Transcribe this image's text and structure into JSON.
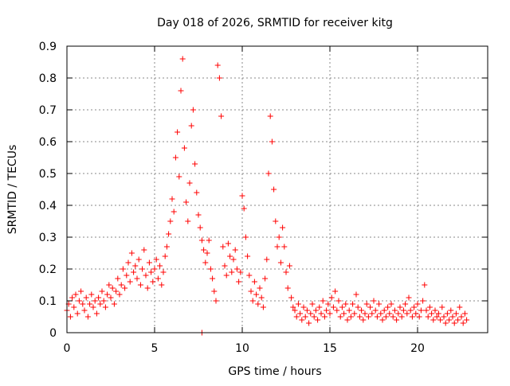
{
  "chart_data": {
    "type": "scatter",
    "title": "Day 018 of 2026, SRMTID for receiver kitg",
    "xlabel": "GPS time / hours",
    "ylabel": "SRMTID / TECUs",
    "xlim": [
      0,
      24
    ],
    "ylim": [
      0,
      0.9
    ],
    "xticks": [
      0,
      5,
      10,
      15,
      20
    ],
    "xtick_labels": [
      "0",
      "5",
      "10",
      "15",
      "20"
    ],
    "yticks": [
      0,
      0.1,
      0.2,
      0.3,
      0.4,
      0.5,
      0.6,
      0.7,
      0.8,
      0.9
    ],
    "ytick_labels": [
      "0",
      "0.1",
      "0.2",
      "0.3",
      "0.4",
      "0.5",
      "0.6",
      "0.7",
      "0.8",
      "0.9"
    ],
    "grid": true,
    "marker": "+",
    "color": "#ff0000",
    "series": [
      {
        "name": "SRMTID",
        "points": [
          [
            0.0,
            0.07
          ],
          [
            0.1,
            0.09
          ],
          [
            0.2,
            0.05
          ],
          [
            0.3,
            0.11
          ],
          [
            0.4,
            0.08
          ],
          [
            0.5,
            0.12
          ],
          [
            0.6,
            0.06
          ],
          [
            0.7,
            0.1
          ],
          [
            0.8,
            0.13
          ],
          [
            0.9,
            0.09
          ],
          [
            1.0,
            0.07
          ],
          [
            1.1,
            0.11
          ],
          [
            1.2,
            0.05
          ],
          [
            1.3,
            0.09
          ],
          [
            1.4,
            0.12
          ],
          [
            1.5,
            0.08
          ],
          [
            1.6,
            0.1
          ],
          [
            1.7,
            0.06
          ],
          [
            1.8,
            0.11
          ],
          [
            1.9,
            0.09
          ],
          [
            2.0,
            0.13
          ],
          [
            2.1,
            0.1
          ],
          [
            2.2,
            0.08
          ],
          [
            2.3,
            0.12
          ],
          [
            2.4,
            0.15
          ],
          [
            2.5,
            0.11
          ],
          [
            2.6,
            0.14
          ],
          [
            2.7,
            0.09
          ],
          [
            2.8,
            0.13
          ],
          [
            2.9,
            0.17
          ],
          [
            3.0,
            0.12
          ],
          [
            3.1,
            0.15
          ],
          [
            3.2,
            0.2
          ],
          [
            3.3,
            0.14
          ],
          [
            3.4,
            0.18
          ],
          [
            3.5,
            0.22
          ],
          [
            3.6,
            0.16
          ],
          [
            3.7,
            0.25
          ],
          [
            3.8,
            0.19
          ],
          [
            3.9,
            0.21
          ],
          [
            4.0,
            0.17
          ],
          [
            4.1,
            0.23
          ],
          [
            4.2,
            0.15
          ],
          [
            4.3,
            0.2
          ],
          [
            4.4,
            0.26
          ],
          [
            4.5,
            0.18
          ],
          [
            4.6,
            0.14
          ],
          [
            4.7,
            0.22
          ],
          [
            4.8,
            0.19
          ],
          [
            4.9,
            0.16
          ],
          [
            5.0,
            0.2
          ],
          [
            5.1,
            0.23
          ],
          [
            5.2,
            0.17
          ],
          [
            5.3,
            0.21
          ],
          [
            5.4,
            0.15
          ],
          [
            5.5,
            0.19
          ],
          [
            5.6,
            0.24
          ],
          [
            5.7,
            0.27
          ],
          [
            5.8,
            0.31
          ],
          [
            5.9,
            0.35
          ],
          [
            6.0,
            0.42
          ],
          [
            6.1,
            0.38
          ],
          [
            6.2,
            0.55
          ],
          [
            6.3,
            0.63
          ],
          [
            6.4,
            0.49
          ],
          [
            6.5,
            0.76
          ],
          [
            6.6,
            0.86
          ],
          [
            6.7,
            0.58
          ],
          [
            6.8,
            0.41
          ],
          [
            6.9,
            0.35
          ],
          [
            7.0,
            0.47
          ],
          [
            7.1,
            0.65
          ],
          [
            7.2,
            0.7
          ],
          [
            7.3,
            0.53
          ],
          [
            7.4,
            0.44
          ],
          [
            7.5,
            0.37
          ],
          [
            7.6,
            0.33
          ],
          [
            7.7,
            0.29
          ],
          [
            7.8,
            0.26
          ],
          [
            7.9,
            0.22
          ],
          [
            8.0,
            0.25
          ],
          [
            8.1,
            0.29
          ],
          [
            8.2,
            0.2
          ],
          [
            8.3,
            0.17
          ],
          [
            8.4,
            0.13
          ],
          [
            8.5,
            0.1
          ],
          [
            8.6,
            0.84
          ],
          [
            8.7,
            0.8
          ],
          [
            8.8,
            0.68
          ],
          [
            8.9,
            0.27
          ],
          [
            9.0,
            0.21
          ],
          [
            9.1,
            0.18
          ],
          [
            9.2,
            0.28
          ],
          [
            9.3,
            0.24
          ],
          [
            9.4,
            0.19
          ],
          [
            9.5,
            0.23
          ],
          [
            9.6,
            0.26
          ],
          [
            9.7,
            0.2
          ],
          [
            9.8,
            0.16
          ],
          [
            9.9,
            0.19
          ],
          [
            10.0,
            0.43
          ],
          [
            10.1,
            0.39
          ],
          [
            10.2,
            0.3
          ],
          [
            10.3,
            0.24
          ],
          [
            10.4,
            0.18
          ],
          [
            10.5,
            0.13
          ],
          [
            10.6,
            0.1
          ],
          [
            10.7,
            0.16
          ],
          [
            10.8,
            0.12
          ],
          [
            10.9,
            0.09
          ],
          [
            11.0,
            0.14
          ],
          [
            11.1,
            0.11
          ],
          [
            11.2,
            0.08
          ],
          [
            11.3,
            0.17
          ],
          [
            11.4,
            0.23
          ],
          [
            11.5,
            0.5
          ],
          [
            11.6,
            0.68
          ],
          [
            11.7,
            0.6
          ],
          [
            11.8,
            0.45
          ],
          [
            11.9,
            0.35
          ],
          [
            12.0,
            0.27
          ],
          [
            12.1,
            0.3
          ],
          [
            12.2,
            0.22
          ],
          [
            12.3,
            0.33
          ],
          [
            12.4,
            0.27
          ],
          [
            12.5,
            0.19
          ],
          [
            12.6,
            0.14
          ],
          [
            12.7,
            0.21
          ],
          [
            12.8,
            0.11
          ],
          [
            12.9,
            0.08
          ],
          [
            13.0,
            0.07
          ],
          [
            13.1,
            0.05
          ],
          [
            13.2,
            0.09
          ],
          [
            13.3,
            0.06
          ],
          [
            13.4,
            0.04
          ],
          [
            13.5,
            0.08
          ],
          [
            13.6,
            0.05
          ],
          [
            13.7,
            0.07
          ],
          [
            13.8,
            0.03
          ],
          [
            13.9,
            0.06
          ],
          [
            14.0,
            0.09
          ],
          [
            14.1,
            0.05
          ],
          [
            14.2,
            0.07
          ],
          [
            14.3,
            0.04
          ],
          [
            14.4,
            0.08
          ],
          [
            14.5,
            0.06
          ],
          [
            14.6,
            0.1
          ],
          [
            14.7,
            0.05
          ],
          [
            14.8,
            0.07
          ],
          [
            14.9,
            0.09
          ],
          [
            15.0,
            0.06
          ],
          [
            15.1,
            0.11
          ],
          [
            15.2,
            0.08
          ],
          [
            15.3,
            0.13
          ],
          [
            15.4,
            0.07
          ],
          [
            15.5,
            0.1
          ],
          [
            15.6,
            0.05
          ],
          [
            15.7,
            0.08
          ],
          [
            15.8,
            0.06
          ],
          [
            15.9,
            0.09
          ],
          [
            16.0,
            0.04
          ],
          [
            16.1,
            0.07
          ],
          [
            16.2,
            0.05
          ],
          [
            16.3,
            0.09
          ],
          [
            16.4,
            0.06
          ],
          [
            16.5,
            0.12
          ],
          [
            16.6,
            0.08
          ],
          [
            16.7,
            0.05
          ],
          [
            16.8,
            0.07
          ],
          [
            16.9,
            0.04
          ],
          [
            17.0,
            0.06
          ],
          [
            17.1,
            0.09
          ],
          [
            17.2,
            0.05
          ],
          [
            17.3,
            0.08
          ],
          [
            17.4,
            0.06
          ],
          [
            17.5,
            0.1
          ],
          [
            17.6,
            0.07
          ],
          [
            17.7,
            0.05
          ],
          [
            17.8,
            0.09
          ],
          [
            17.9,
            0.06
          ],
          [
            18.0,
            0.04
          ],
          [
            18.1,
            0.07
          ],
          [
            18.2,
            0.05
          ],
          [
            18.3,
            0.08
          ],
          [
            18.4,
            0.06
          ],
          [
            18.5,
            0.09
          ],
          [
            18.6,
            0.05
          ],
          [
            18.7,
            0.07
          ],
          [
            18.8,
            0.04
          ],
          [
            18.9,
            0.06
          ],
          [
            19.0,
            0.08
          ],
          [
            19.1,
            0.05
          ],
          [
            19.2,
            0.07
          ],
          [
            19.3,
            0.09
          ],
          [
            19.4,
            0.06
          ],
          [
            19.5,
            0.11
          ],
          [
            19.6,
            0.07
          ],
          [
            19.7,
            0.05
          ],
          [
            19.8,
            0.08
          ],
          [
            19.9,
            0.06
          ],
          [
            20.0,
            0.09
          ],
          [
            20.1,
            0.05
          ],
          [
            20.2,
            0.07
          ],
          [
            20.3,
            0.1
          ],
          [
            20.4,
            0.15
          ],
          [
            20.5,
            0.07
          ],
          [
            20.6,
            0.05
          ],
          [
            20.7,
            0.08
          ],
          [
            20.8,
            0.06
          ],
          [
            20.9,
            0.04
          ],
          [
            21.0,
            0.07
          ],
          [
            21.1,
            0.05
          ],
          [
            21.2,
            0.06
          ],
          [
            21.3,
            0.04
          ],
          [
            21.4,
            0.08
          ],
          [
            21.5,
            0.05
          ],
          [
            21.6,
            0.03
          ],
          [
            21.7,
            0.06
          ],
          [
            21.8,
            0.04
          ],
          [
            21.9,
            0.07
          ],
          [
            22.0,
            0.05
          ],
          [
            22.1,
            0.03
          ],
          [
            22.2,
            0.06
          ],
          [
            22.3,
            0.04
          ],
          [
            22.4,
            0.08
          ],
          [
            22.5,
            0.05
          ],
          [
            22.6,
            0.03
          ],
          [
            22.7,
            0.06
          ],
          [
            22.8,
            0.04
          ],
          [
            7.7,
            0.0
          ]
        ]
      }
    ]
  }
}
